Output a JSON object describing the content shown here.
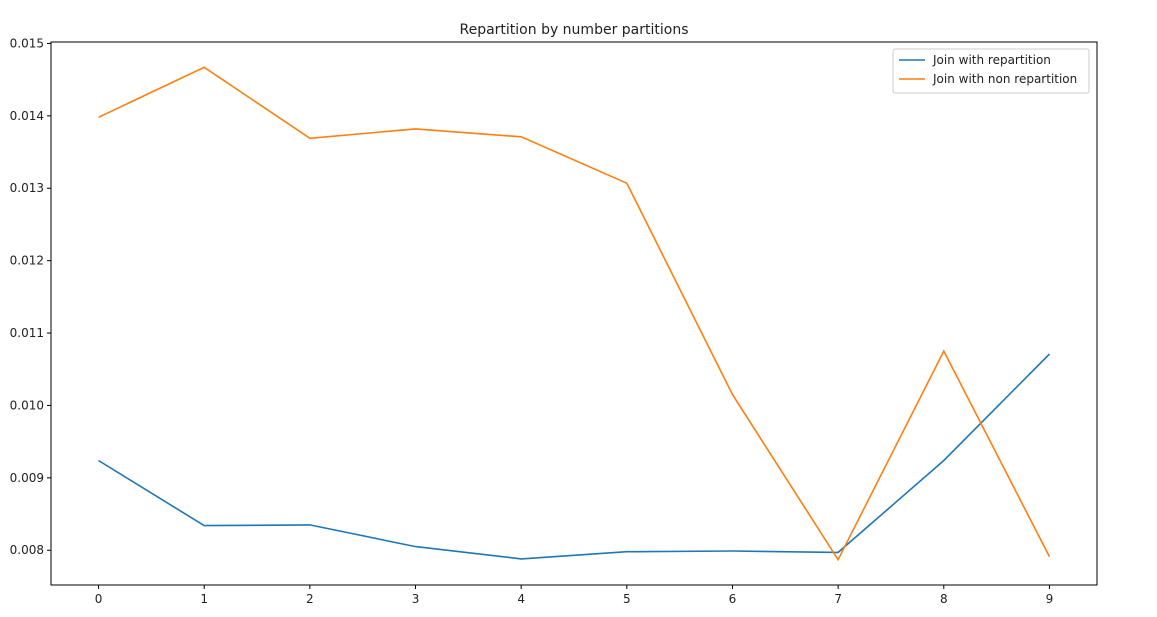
{
  "chart_data": {
    "type": "line",
    "title": "Repartition by number partitions",
    "xlabel": "",
    "ylabel": "",
    "x": [
      0,
      1,
      2,
      3,
      4,
      5,
      6,
      7,
      8,
      9
    ],
    "xlim": [
      -0.45,
      9.45
    ],
    "ylim": [
      0.00752,
      0.01502
    ],
    "xticks": [
      0,
      1,
      2,
      3,
      4,
      5,
      6,
      7,
      8,
      9
    ],
    "yticks": [
      0.008,
      0.009,
      0.01,
      0.011,
      0.012,
      0.013,
      0.014,
      0.015
    ],
    "ytick_labels": [
      "0.008",
      "0.009",
      "0.010",
      "0.011",
      "0.012",
      "0.013",
      "0.014",
      "0.015"
    ],
    "grid": false,
    "legend_position": "top-right",
    "series": [
      {
        "name": "Join with repartition",
        "color": "#1f77b4",
        "values": [
          0.00924,
          0.00834,
          0.00835,
          0.00805,
          0.00788,
          0.00798,
          0.00799,
          0.00797,
          0.00924,
          0.01071
        ]
      },
      {
        "name": "Join with non repartition",
        "color": "#ff7f0e",
        "values": [
          0.01398,
          0.01467,
          0.01369,
          0.01382,
          0.01371,
          0.01307,
          0.01015,
          0.00787,
          0.01075,
          0.00791
        ]
      }
    ]
  }
}
